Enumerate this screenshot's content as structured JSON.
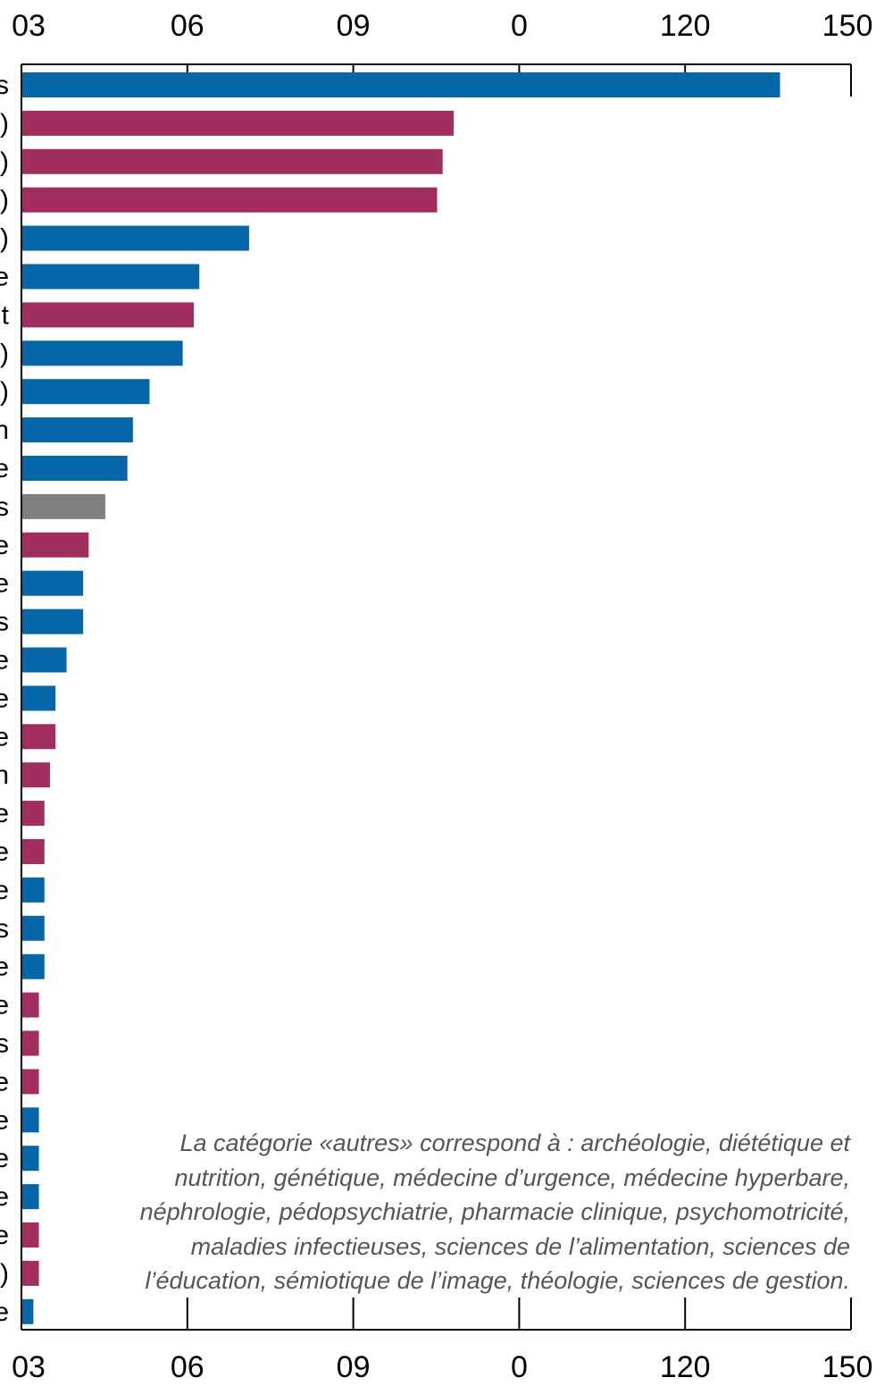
{
  "chart_data": {
    "type": "bar",
    "orientation": "horizontal",
    "x_tick_labels": [
      "03",
      "06",
      "09",
      "0",
      "120",
      "150"
    ],
    "x_ticks": [
      0,
      30,
      60,
      90,
      120,
      150
    ],
    "xlim": [
      0,
      150
    ],
    "grid": false,
    "category_labels_visible": [
      "s",
      ")",
      ")",
      ")",
      ")",
      "e",
      "t",
      ")",
      ")",
      "n",
      "e",
      "s",
      "e",
      "e",
      "s",
      "e",
      "e",
      "e",
      "n",
      "e",
      "e",
      "e",
      "s",
      "e",
      "e",
      "s",
      "e",
      "e",
      "e",
      "e",
      "e",
      ")",
      "e"
    ],
    "values": [
      137,
      78,
      76,
      75,
      41,
      32,
      31,
      29,
      23,
      20,
      19,
      15,
      12,
      11,
      11,
      8,
      6,
      6,
      5,
      4,
      4,
      4,
      4,
      4,
      3,
      3,
      3,
      3,
      3,
      3,
      3,
      3,
      2
    ],
    "bar_colors": [
      "#0567a8",
      "#a12e5f",
      "#a12e5f",
      "#a12e5f",
      "#0567a8",
      "#0567a8",
      "#a12e5f",
      "#0567a8",
      "#0567a8",
      "#0567a8",
      "#0567a8",
      "#808080",
      "#a12e5f",
      "#0567a8",
      "#0567a8",
      "#0567a8",
      "#0567a8",
      "#a12e5f",
      "#a12e5f",
      "#a12e5f",
      "#a12e5f",
      "#0567a8",
      "#0567a8",
      "#0567a8",
      "#a12e5f",
      "#a12e5f",
      "#a12e5f",
      "#0567a8",
      "#0567a8",
      "#0567a8",
      "#a12e5f",
      "#a12e5f",
      "#0567a8"
    ],
    "colors": {
      "blue": "#0567a8",
      "magenta": "#a12e5f",
      "gray": "#808080"
    },
    "annotation_lines": [
      "La catégorie «autres» correspond à : archéologie, diététique et",
      "nutrition, génétique, médecine d’urgence, médecine hyperbare,",
      "néphrologie, pédopsychiatrie, pharmacie clinique, psychomotricité,",
      "maladies infectieuses, sciences de l’alimentation, sciences de",
      "l’éducation, sémiotique de l’image, théologie, sciences de gestion."
    ]
  }
}
